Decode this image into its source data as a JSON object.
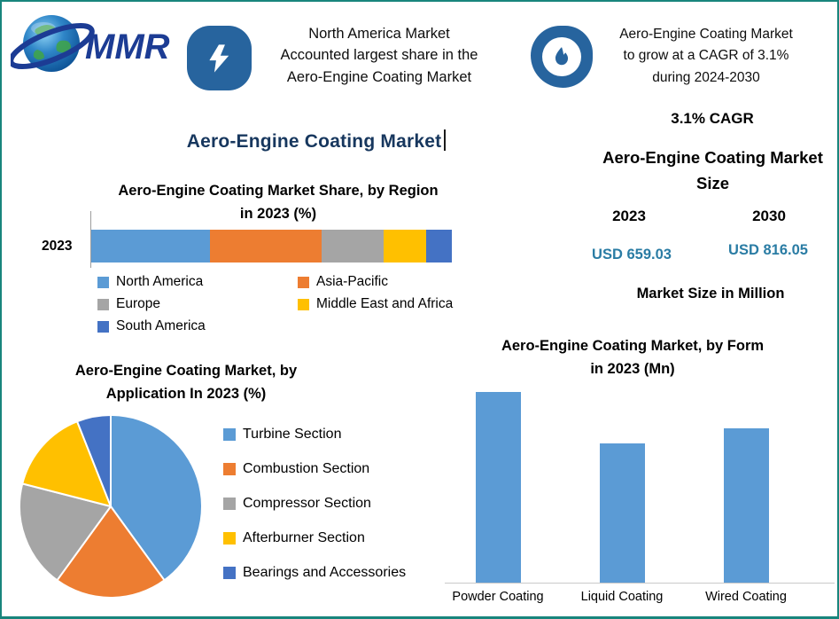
{
  "logo": {
    "text": "MMR",
    "brand_color": "#1C3C94"
  },
  "banners": {
    "left": {
      "icon": "lightning-icon",
      "lines": [
        "North America Market",
        "Accounted largest share in the",
        "Aero-Engine Coating Market"
      ]
    },
    "right": {
      "icon": "flame-icon",
      "lines": [
        "Aero-Engine Coating Market",
        "to grow at a CAGR of 3.1%",
        "during 2024-2030"
      ]
    }
  },
  "main_title": "Aero-Engine Coating Market",
  "region_chart": {
    "title_lines": [
      "Aero-Engine Coating Market Share, by Region",
      "in 2023 (%)"
    ],
    "row_label": "2023"
  },
  "pie_chart": {
    "title_lines": [
      "Aero-Engine Coating Market, by",
      "Application In 2023 (%)"
    ]
  },
  "size_panel": {
    "cagr": "3.1% CAGR",
    "title_lines": [
      "Aero-Engine Coating Market",
      "Size"
    ],
    "year_left": "2023",
    "year_right": "2030",
    "value_left": "USD 659.03",
    "value_right": "USD 816.05",
    "value_color": "#2A7CA4",
    "note": "Market Size in Million"
  },
  "form_chart": {
    "title_lines": [
      "Aero-Engine Coating Market, by Form",
      "in 2023 (Mn)"
    ]
  },
  "chart_data": [
    {
      "type": "bar",
      "subtype": "stacked-horizontal",
      "title": "Aero-Engine Coating Market Share, by Region in 2023 (%)",
      "categories": [
        "2023"
      ],
      "unit": "%",
      "series": [
        {
          "name": "North America",
          "value": 33,
          "color": "#5B9BD5"
        },
        {
          "name": "Asia-Pacific",
          "value": 31,
          "color": "#ED7D31"
        },
        {
          "name": "Europe",
          "value": 17,
          "color": "#A5A5A5"
        },
        {
          "name": "Middle East and Africa",
          "value": 12,
          "color": "#FFC000"
        },
        {
          "name": "South America",
          "value": 7,
          "color": "#4472C4"
        }
      ],
      "legend_position": "bottom"
    },
    {
      "type": "pie",
      "title": "Aero-Engine Coating Market, by Application In 2023 (%)",
      "unit": "%",
      "start_angle_deg": 0,
      "direction": "clockwise",
      "slices": [
        {
          "name": "Turbine Section",
          "value": 40,
          "color": "#5B9BD5"
        },
        {
          "name": "Combustion Section",
          "value": 20,
          "color": "#ED7D31"
        },
        {
          "name": "Compressor Section",
          "value": 19,
          "color": "#A5A5A5"
        },
        {
          "name": "Afterburner Section",
          "value": 15,
          "color": "#FFC000"
        },
        {
          "name": "Bearings and Accessories",
          "value": 6,
          "color": "#4472C4"
        }
      ],
      "legend_position": "right"
    },
    {
      "type": "bar",
      "title": "Aero-Engine Coating Market, by Form in 2023 (Mn)",
      "categories": [
        "Powder Coating",
        "Liquid Coating",
        "Wired Coating"
      ],
      "values": [
        100,
        73,
        81
      ],
      "values_note": "relative bar heights; no y-axis scale shown in image",
      "color": "#5B9BD5",
      "grid": false
    }
  ]
}
